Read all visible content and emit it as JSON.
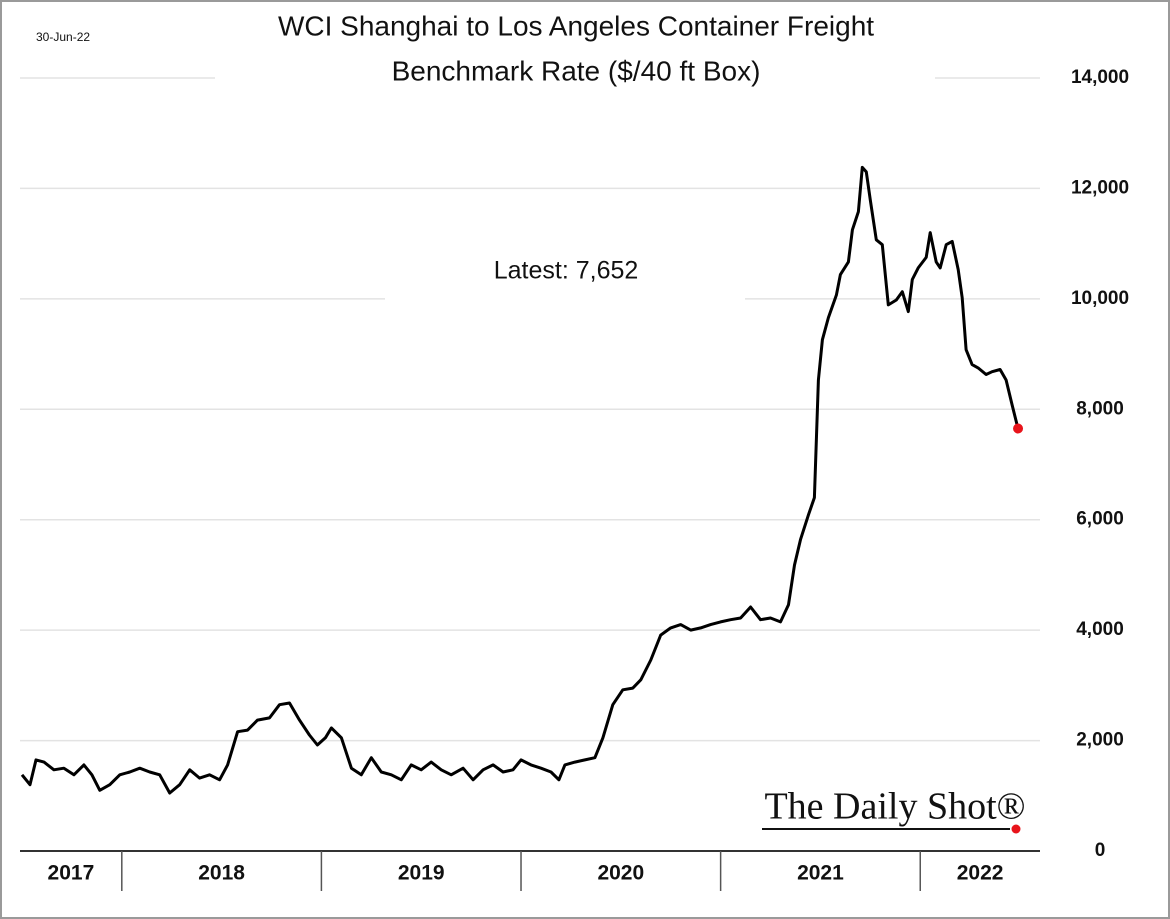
{
  "chart_data": {
    "type": "line",
    "date_note": "30-Jun-22",
    "title": [
      "WCI Shanghai to Los Angeles Container Freight",
      "Benchmark Rate ($/40 ft Box)"
    ],
    "annotation": "Latest:  7,652",
    "source": "The Daily Shot®",
    "x": [
      2017.5,
      2017.54,
      2017.57,
      2017.61,
      2017.66,
      2017.71,
      2017.76,
      2017.81,
      2017.85,
      2017.89,
      2017.94,
      2017.99,
      2018.04,
      2018.09,
      2018.14,
      2018.19,
      2018.24,
      2018.29,
      2018.34,
      2018.39,
      2018.44,
      2018.49,
      2018.53,
      2018.58,
      2018.63,
      2018.68,
      2018.74,
      2018.79,
      2018.84,
      2018.89,
      2018.94,
      2018.98,
      2019.02,
      2019.05,
      2019.1,
      2019.15,
      2019.2,
      2019.25,
      2019.3,
      2019.35,
      2019.4,
      2019.45,
      2019.5,
      2019.55,
      2019.6,
      2019.65,
      2019.71,
      2019.76,
      2019.81,
      2019.86,
      2019.91,
      2019.96,
      2020.0,
      2020.05,
      2020.1,
      2020.15,
      2020.19,
      2020.22,
      2020.27,
      2020.32,
      2020.37,
      2020.41,
      2020.46,
      2020.51,
      2020.56,
      2020.6,
      2020.65,
      2020.7,
      2020.75,
      2020.8,
      2020.85,
      2020.9,
      2020.95,
      2021.0,
      2021.05,
      2021.1,
      2021.15,
      2021.2,
      2021.25,
      2021.3,
      2021.34,
      2021.37,
      2021.4,
      2021.44,
      2021.47,
      2021.49,
      2021.51,
      2021.54,
      2021.58,
      2021.6,
      2021.64,
      2021.66,
      2021.69,
      2021.71,
      2021.73,
      2021.75,
      2021.78,
      2021.81,
      2021.84,
      2021.88,
      2021.91,
      2021.94,
      2021.96,
      2021.99,
      2022.03,
      2022.05,
      2022.08,
      2022.1,
      2022.13,
      2022.16,
      2022.19,
      2022.21,
      2022.23,
      2022.26,
      2022.29,
      2022.33,
      2022.36,
      2022.4,
      2022.43,
      2022.46,
      2022.49
    ],
    "series": [
      {
        "color": "#000000",
        "values": [
          1380,
          1200,
          1650,
          1610,
          1470,
          1500,
          1380,
          1560,
          1380,
          1100,
          1200,
          1380,
          1430,
          1500,
          1430,
          1380,
          1050,
          1200,
          1470,
          1320,
          1380,
          1290,
          1560,
          2160,
          2190,
          2370,
          2410,
          2650,
          2680,
          2370,
          2100,
          1920,
          2050,
          2230,
          2050,
          1500,
          1380,
          1690,
          1430,
          1380,
          1290,
          1560,
          1470,
          1610,
          1470,
          1380,
          1500,
          1290,
          1470,
          1560,
          1430,
          1470,
          1650,
          1560,
          1500,
          1430,
          1290,
          1560,
          1610,
          1650,
          1690,
          2050,
          2650,
          2920,
          2950,
          3100,
          3460,
          3910,
          4040,
          4100,
          4000,
          4040,
          4100,
          4150,
          4190,
          4220,
          4420,
          4190,
          4220,
          4150,
          4460,
          5180,
          5640,
          6090,
          6400,
          8530,
          9260,
          9660,
          10070,
          10440,
          10670,
          11250,
          11580,
          12380,
          12300,
          11790,
          11070,
          10980,
          9890,
          9980,
          10130,
          9770,
          10350,
          10560,
          10750,
          11200,
          10670,
          10560,
          10980,
          11040,
          10530,
          10020,
          9080,
          8810,
          8750,
          8630,
          8680,
          8720,
          8530,
          8080,
          7652
        ]
      }
    ],
    "last_marker_color": "#e8141b",
    "xlim": [
      2017.49,
      2022.6
    ],
    "xticks": [
      2018,
      2019,
      2020,
      2021,
      2022
    ],
    "x_labels": [
      "2017",
      "2018",
      "2019",
      "2020",
      "2021",
      "2022"
    ],
    "ylim": [
      0,
      14000
    ],
    "yticks": [
      0,
      {
        "value": 2000,
        "label": "2,000"
      },
      {
        "value": 4000,
        "label": "4,000"
      },
      {
        "value": 6000,
        "label": "6,000"
      },
      {
        "value": 8000,
        "label": "8,000"
      },
      {
        "value": 10000,
        "label": "10,000"
      },
      {
        "value": 12000,
        "label": "12,000"
      },
      {
        "value": 14000,
        "label": "14,000"
      }
    ],
    "grid": true
  }
}
